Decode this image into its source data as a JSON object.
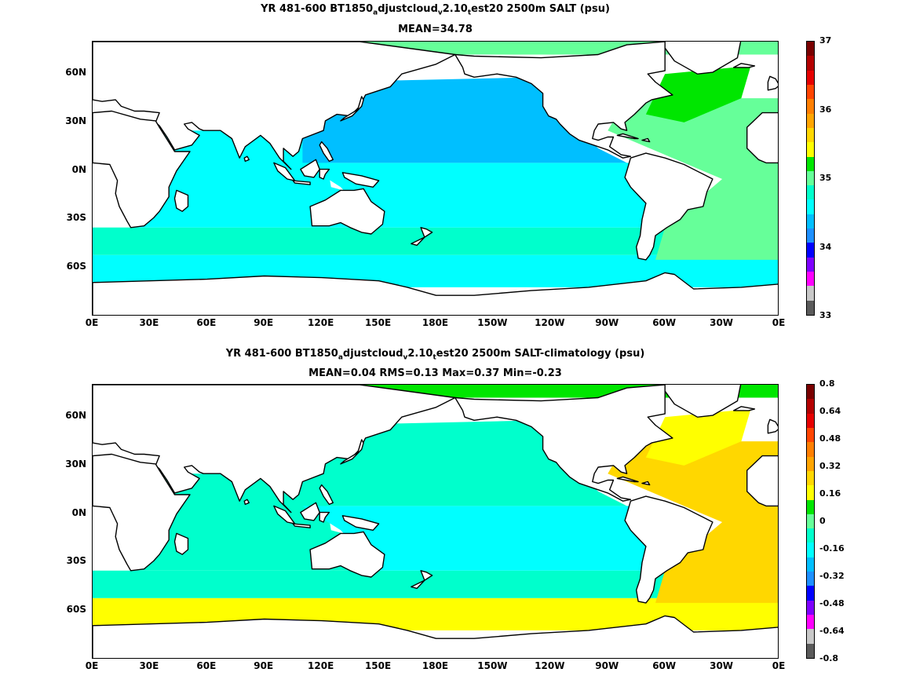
{
  "panels": [
    {
      "title_parts": [
        "YR 481-600 BT1850",
        "a",
        "djustcloud",
        "v",
        "2.10",
        "t",
        "est20 2500m SALT (psu)"
      ],
      "subtitle": "MEAN=34.78",
      "lat_ticks": [
        "60N",
        "30N",
        "0N",
        "30S",
        "60S"
      ],
      "lon_ticks": [
        "0E",
        "30E",
        "60E",
        "90E",
        "120E",
        "150E",
        "180E",
        "150W",
        "120W",
        "90W",
        "60W",
        "30W",
        "0E"
      ],
      "colorbar": {
        "labels": [
          "37",
          "36",
          "35",
          "34",
          "33"
        ],
        "colors": [
          "#7a0000",
          "#b40000",
          "#e60000",
          "#ff4500",
          "#ff7f00",
          "#ffa500",
          "#ffd700",
          "#ffff00",
          "#00e600",
          "#66ff99",
          "#00ffcc",
          "#00ffff",
          "#00bfff",
          "#1e90ff",
          "#0000ff",
          "#7f00ff",
          "#ff00ff",
          "#c8c8c8",
          "#5a5a5a"
        ]
      },
      "field_colors": {
        "north_pacific": "#00bfff",
        "pacific_band": "#00ffff",
        "south_band": "#00ffcc",
        "atlantic": "#66ff99",
        "arctic": "#66ff99",
        "indian": "#00ffff",
        "southern": "#00ffff",
        "atlantic_core": "#00e600"
      }
    },
    {
      "title_parts": [
        "YR 481-600 BT1850",
        "a",
        "djustcloud",
        "v",
        "2.10",
        "t",
        "est20 2500m SALT-climatology (psu)"
      ],
      "subtitle": "MEAN=0.04   RMS=0.13   Max=0.37   Min=-0.23",
      "lat_ticks": [
        "60N",
        "30N",
        "0N",
        "30S",
        "60S"
      ],
      "lon_ticks": [
        "0E",
        "30E",
        "60E",
        "90E",
        "120E",
        "150E",
        "180E",
        "150W",
        "120W",
        "90W",
        "60W",
        "30W",
        "0E"
      ],
      "colorbar": {
        "labels": [
          "0.8",
          "0.64",
          "0.48",
          "0.32",
          "0.16",
          "0",
          "-0.16",
          "-0.32",
          "-0.48",
          "-0.64",
          "-0.8"
        ],
        "colors": [
          "#7a0000",
          "#b40000",
          "#e60000",
          "#ff4500",
          "#ff7f00",
          "#ffa500",
          "#ffd700",
          "#ffff00",
          "#00e600",
          "#66ff99",
          "#00ffcc",
          "#00ffff",
          "#00bfff",
          "#1e90ff",
          "#0000ff",
          "#7f00ff",
          "#ff00ff",
          "#c8c8c8",
          "#5a5a5a"
        ]
      },
      "field_colors": {
        "north_pacific": "#00ffcc",
        "pacific_band": "#00ffff",
        "south_band": "#00ffcc",
        "atlantic": "#ffd700",
        "arctic": "#00e600",
        "indian": "#00ffcc",
        "southern": "#ffff00",
        "atlantic_core": "#ffff00"
      }
    }
  ]
}
